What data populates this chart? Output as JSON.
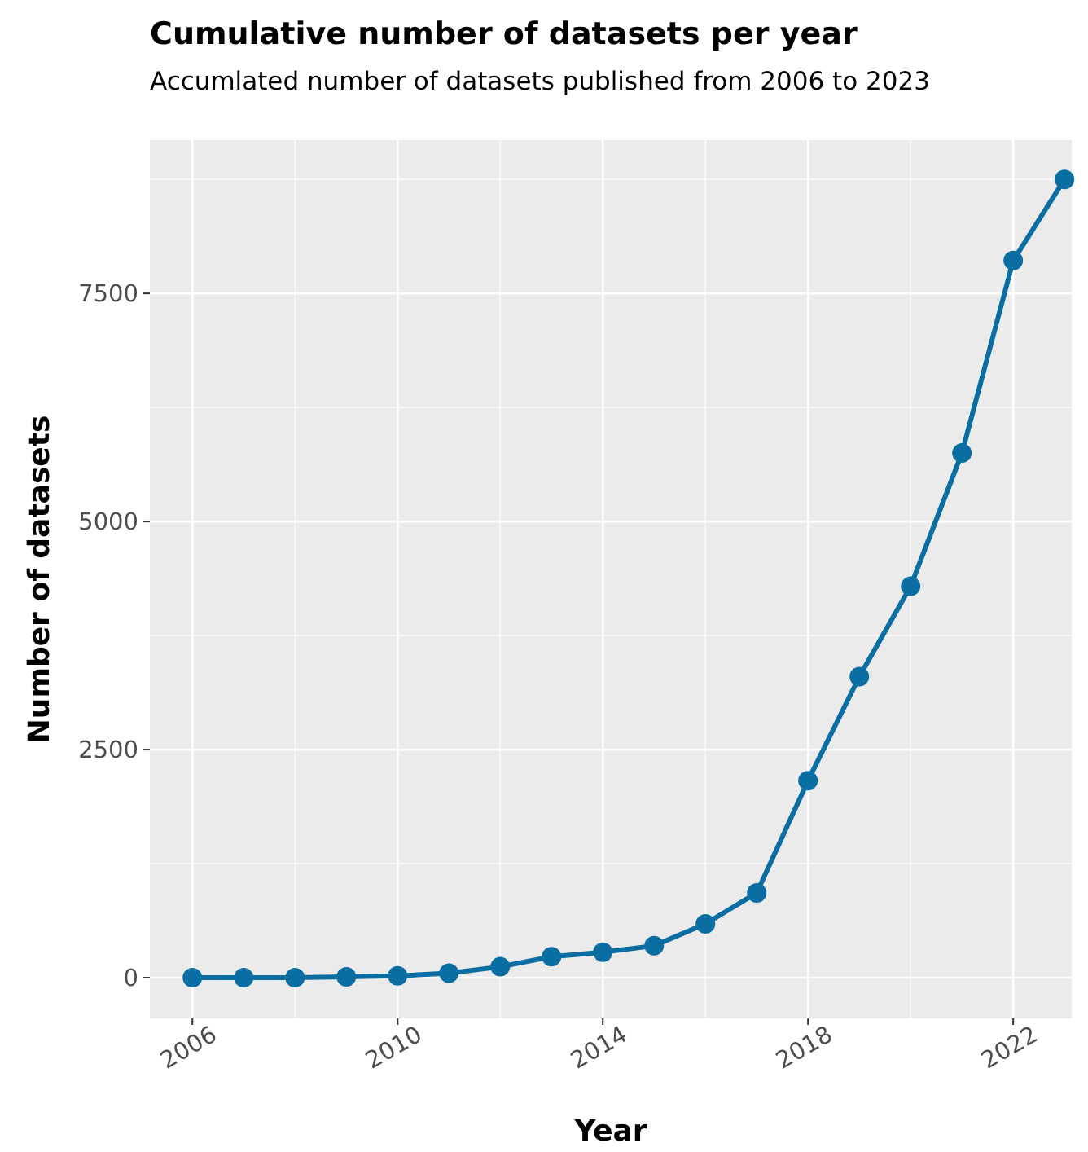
{
  "chart_data": {
    "type": "line",
    "title": "Cumulative number of datasets per year",
    "subtitle": "Accumlated number of datasets published from 2006 to 2023",
    "xlabel": "Year",
    "ylabel": "Number of datasets",
    "x": [
      2006,
      2007,
      2008,
      2009,
      2010,
      2011,
      2012,
      2013,
      2014,
      2015,
      2016,
      2017,
      2018,
      2019,
      2020,
      2021,
      2022,
      2023
    ],
    "series": [
      {
        "color": "#0a6ea3",
        "values": [
          0,
          0,
          0,
          10,
          20,
          50,
          120,
          230,
          280,
          350,
          590,
          930,
          2160,
          3300,
          4290,
          5750,
          7860,
          8750
        ]
      }
    ],
    "xlim": [
      2005.17,
      2023.14
    ],
    "xticks": [
      2006,
      2010,
      2014,
      2018,
      2022
    ],
    "ylim": [
      -446,
      9180
    ],
    "yticks": [
      0,
      2500,
      5000,
      7500
    ],
    "grid": true,
    "marker": "circle",
    "line_style": "solid"
  }
}
